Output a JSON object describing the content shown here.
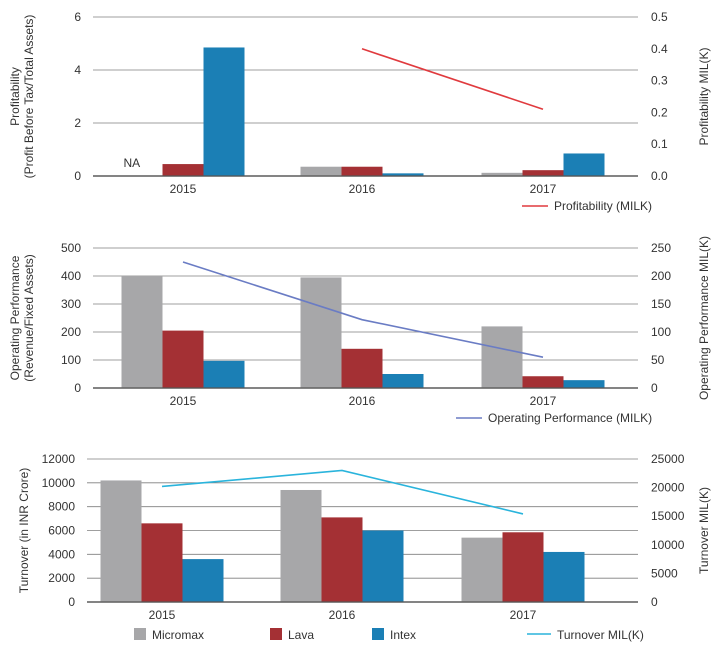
{
  "colors": {
    "Micromax": "#a7a7a9",
    "Lava": "#a43034",
    "Intex": "#1b7fb5"
  },
  "legend": {
    "bars": [
      {
        "name": "Micromax",
        "color": "#a7a7a9"
      },
      {
        "name": "Lava",
        "color": "#a43034"
      },
      {
        "name": "Intex",
        "color": "#1b7fb5"
      }
    ],
    "line": {
      "name": "Turnover MIL(K)",
      "color": "#2ab4dc"
    }
  },
  "chart_data": [
    {
      "type": "bar",
      "categories": [
        "2015",
        "2016",
        "2017"
      ],
      "ylabel": "Profitability\n(Profit Before Tax/Total Assets)",
      "y2label": "Profitability MIL(K)",
      "ylim": [
        0,
        6
      ],
      "yticks": [
        "0",
        "2",
        "4",
        "6"
      ],
      "y2lim": [
        0,
        0.5
      ],
      "y2ticks": [
        "0.0",
        "0.1",
        "0.2",
        "0.3",
        "0.4",
        "0.5"
      ],
      "series": [
        {
          "name": "Micromax",
          "values": [
            null,
            0.35,
            0.12
          ]
        },
        {
          "name": "Lava",
          "values": [
            0.45,
            0.35,
            0.22
          ]
        },
        {
          "name": "Intex",
          "values": [
            4.85,
            0.1,
            0.85
          ]
        }
      ],
      "annotation": {
        "category": "2015",
        "text": "NA"
      },
      "line": {
        "name": "Profitability (MILK)",
        "color": "#e03a3e",
        "x": [
          "2016",
          "2017"
        ],
        "values": [
          0.4,
          0.21
        ]
      },
      "legend_placement": "below-right"
    },
    {
      "type": "bar",
      "categories": [
        "2015",
        "2016",
        "2017"
      ],
      "ylabel": "Operating Performance\n(Revenue/Fixed Assets)",
      "y2label": "Operating  Performance MIL(K)",
      "ylim": [
        0,
        500
      ],
      "yticks": [
        "0",
        "100",
        "200",
        "300",
        "400",
        "500"
      ],
      "y2lim": [
        0,
        250
      ],
      "y2ticks": [
        "0",
        "50",
        "100",
        "150",
        "200",
        "250"
      ],
      "series": [
        {
          "name": "Micromax",
          "values": [
            400,
            395,
            220
          ]
        },
        {
          "name": "Lava",
          "values": [
            205,
            140,
            42
          ]
        },
        {
          "name": "Intex",
          "values": [
            97,
            50,
            28
          ]
        }
      ],
      "line": {
        "name": "Operating Performance (MILK)",
        "color": "#6a7cc4",
        "x": [
          "2015",
          "2016",
          "2017"
        ],
        "values": [
          225,
          122,
          55
        ]
      },
      "legend_placement": "below-right"
    },
    {
      "type": "bar",
      "categories": [
        "2015",
        "2016",
        "2017"
      ],
      "ylabel": "Turnover (in INR Crore)",
      "y2label": "Turnover MIL(K)",
      "ylim": [
        0,
        12000
      ],
      "yticks": [
        "0",
        "2000",
        "4000",
        "6000",
        "8000",
        "10000",
        "12000"
      ],
      "y2lim": [
        0,
        25000
      ],
      "y2ticks": [
        "0",
        "5000",
        "10000",
        "15000",
        "20000",
        "25000"
      ],
      "series": [
        {
          "name": "Micromax",
          "values": [
            10200,
            9400,
            5400
          ]
        },
        {
          "name": "Lava",
          "values": [
            6600,
            7100,
            5850
          ]
        },
        {
          "name": "Intex",
          "values": [
            3600,
            6000,
            4200
          ]
        }
      ],
      "line": {
        "name": "Turnover MIL(K)",
        "color": "#2ab4dc",
        "x": [
          "2015",
          "2016",
          "2017"
        ],
        "values": [
          20200,
          23000,
          15400
        ]
      },
      "legend_placement": "bottom"
    }
  ]
}
